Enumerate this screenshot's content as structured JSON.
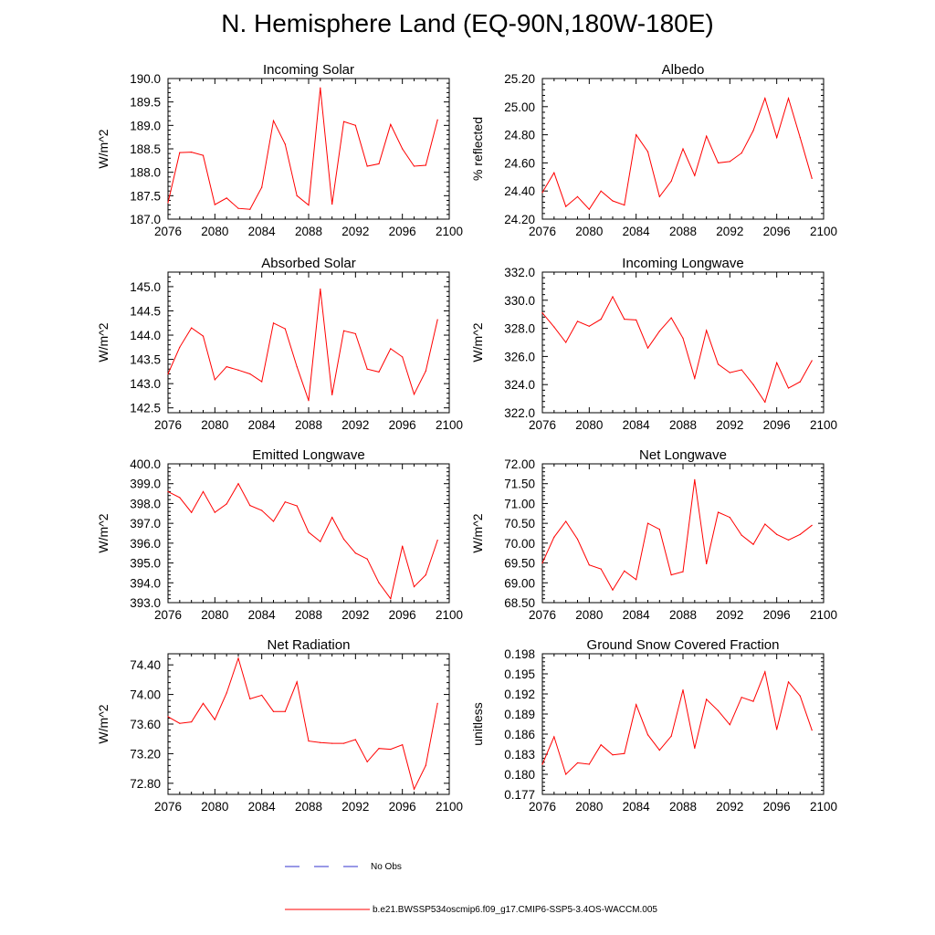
{
  "figure": {
    "title": "N. Hemisphere Land (EQ-90N,180W-180E)",
    "legend": [
      {
        "label": "No Obs",
        "color": "#3333cc",
        "dash": true
      },
      {
        "label": "b.e21.BWSSP534oscmip6.f09_g17.CMIP6-SSP5-3.4OS-WACCM.005",
        "color": "#ff0000",
        "dash": false
      }
    ]
  },
  "chart_data": [
    {
      "type": "line",
      "title": "Incoming Solar",
      "ylabel": "W/m^2",
      "xlim": [
        2076,
        2100
      ],
      "ylim": [
        187.0,
        190.0
      ],
      "xticks": [
        "2076",
        "2080",
        "2084",
        "2088",
        "2092",
        "2096",
        "2100"
      ],
      "yticks": [
        "187.0",
        "187.5",
        "188.0",
        "188.5",
        "189.0",
        "189.5",
        "190.0"
      ],
      "series": [
        {
          "name": "b.e21.BWSSP534oscmip6.f09_g17.CMIP6-SSP5-3.4OS-WACCM.005",
          "color": "#ff0000",
          "x": [
            2076,
            2077,
            2078,
            2079,
            2080,
            2081,
            2082,
            2083,
            2084,
            2085,
            2086,
            2087,
            2088,
            2089,
            2090,
            2091,
            2092,
            2093,
            2094,
            2095,
            2096,
            2097,
            2098,
            2099
          ],
          "values": [
            187.35,
            188.42,
            188.43,
            188.36,
            187.31,
            187.45,
            187.23,
            187.21,
            187.68,
            189.1,
            188.6,
            187.5,
            187.3,
            189.8,
            187.32,
            189.08,
            189.0,
            188.13,
            188.18,
            189.02,
            188.5,
            188.13,
            188.15,
            189.12
          ]
        }
      ]
    },
    {
      "type": "line",
      "title": "Albedo",
      "ylabel": "% reflected",
      "xlim": [
        2076,
        2100
      ],
      "ylim": [
        24.2,
        25.2
      ],
      "xticks": [
        "2076",
        "2080",
        "2084",
        "2088",
        "2092",
        "2096",
        "2100"
      ],
      "yticks": [
        "24.20",
        "24.40",
        "24.60",
        "24.80",
        "25.00",
        "25.20"
      ],
      "series": [
        {
          "name": "b.e21.BWSSP534oscmip6.f09_g17.CMIP6-SSP5-3.4OS-WACCM.005",
          "color": "#ff0000",
          "x": [
            2076,
            2077,
            2078,
            2079,
            2080,
            2081,
            2082,
            2083,
            2084,
            2085,
            2086,
            2087,
            2088,
            2089,
            2090,
            2091,
            2092,
            2093,
            2094,
            2095,
            2096,
            2097,
            2098,
            2099
          ],
          "values": [
            24.39,
            24.53,
            24.29,
            24.36,
            24.27,
            24.4,
            24.33,
            24.3,
            24.8,
            24.68,
            24.36,
            24.47,
            24.7,
            24.51,
            24.79,
            24.6,
            24.61,
            24.67,
            24.83,
            25.06,
            24.78,
            25.06,
            24.78,
            24.49
          ]
        }
      ]
    },
    {
      "type": "line",
      "title": "Absorbed Solar",
      "ylabel": "W/m^2",
      "xlim": [
        2076,
        2100
      ],
      "ylim": [
        142.4,
        145.3
      ],
      "xticks": [
        "2076",
        "2080",
        "2084",
        "2088",
        "2092",
        "2096",
        "2100"
      ],
      "yticks": [
        "142.5",
        "143.0",
        "143.5",
        "144.0",
        "144.5",
        "145.0"
      ],
      "series": [
        {
          "name": "b.e21.BWSSP534oscmip6.f09_g17.CMIP6-SSP5-3.4OS-WACCM.005",
          "color": "#ff0000",
          "x": [
            2076,
            2077,
            2078,
            2079,
            2080,
            2081,
            2082,
            2083,
            2084,
            2085,
            2086,
            2087,
            2088,
            2089,
            2090,
            2091,
            2092,
            2093,
            2094,
            2095,
            2096,
            2097,
            2098,
            2099
          ],
          "values": [
            143.2,
            143.75,
            144.15,
            143.98,
            143.08,
            143.35,
            143.28,
            143.2,
            143.04,
            144.25,
            144.13,
            143.35,
            142.65,
            144.95,
            142.77,
            144.09,
            144.03,
            143.3,
            143.24,
            143.72,
            143.55,
            142.78,
            143.26,
            144.32
          ]
        }
      ]
    },
    {
      "type": "line",
      "title": "Incoming Longwave",
      "ylabel": "W/m^2",
      "xlim": [
        2076,
        2100
      ],
      "ylim": [
        322.0,
        332.0
      ],
      "xticks": [
        "2076",
        "2080",
        "2084",
        "2088",
        "2092",
        "2096",
        "2100"
      ],
      "yticks": [
        "322.0",
        "324.0",
        "326.0",
        "328.0",
        "330.0",
        "332.0"
      ],
      "series": [
        {
          "name": "b.e21.BWSSP534oscmip6.f09_g17.CMIP6-SSP5-3.4OS-WACCM.005",
          "color": "#ff0000",
          "x": [
            2076,
            2077,
            2078,
            2079,
            2080,
            2081,
            2082,
            2083,
            2084,
            2085,
            2086,
            2087,
            2088,
            2089,
            2090,
            2091,
            2092,
            2093,
            2094,
            2095,
            2096,
            2097,
            2098,
            2099
          ],
          "values": [
            329.1,
            328.1,
            327.0,
            328.5,
            328.15,
            328.65,
            330.25,
            328.65,
            328.6,
            326.6,
            327.8,
            328.75,
            327.3,
            324.45,
            327.85,
            325.45,
            324.85,
            325.05,
            324.0,
            322.75,
            325.55,
            323.75,
            324.2,
            325.7
          ]
        }
      ]
    },
    {
      "type": "line",
      "title": "Emitted Longwave",
      "ylabel": "W/m^2",
      "xlim": [
        2076,
        2100
      ],
      "ylim": [
        393.0,
        400.0
      ],
      "xticks": [
        "2076",
        "2080",
        "2084",
        "2088",
        "2092",
        "2096",
        "2100"
      ],
      "yticks": [
        "393.0",
        "394.0",
        "395.0",
        "396.0",
        "397.0",
        "398.0",
        "399.0",
        "400.0"
      ],
      "series": [
        {
          "name": "b.e21.BWSSP534oscmip6.f09_g17.CMIP6-SSP5-3.4OS-WACCM.005",
          "color": "#ff0000",
          "x": [
            2076,
            2077,
            2078,
            2079,
            2080,
            2081,
            2082,
            2083,
            2084,
            2085,
            2086,
            2087,
            2088,
            2089,
            2090,
            2091,
            2092,
            2093,
            2094,
            2095,
            2096,
            2097,
            2098,
            2099
          ],
          "values": [
            398.6,
            398.3,
            397.55,
            398.6,
            397.55,
            397.98,
            399.0,
            397.9,
            397.65,
            397.1,
            398.08,
            397.88,
            396.55,
            396.08,
            397.3,
            396.2,
            395.5,
            395.2,
            394.0,
            393.2,
            395.85,
            393.8,
            394.4,
            396.15
          ]
        }
      ]
    },
    {
      "type": "line",
      "title": "Net Longwave",
      "ylabel": "W/m^2",
      "xlim": [
        2076,
        2100
      ],
      "ylim": [
        68.5,
        72.0
      ],
      "xticks": [
        "2076",
        "2080",
        "2084",
        "2088",
        "2092",
        "2096",
        "2100"
      ],
      "yticks": [
        "68.50",
        "69.00",
        "69.50",
        "70.00",
        "70.50",
        "71.00",
        "71.50",
        "72.00"
      ],
      "series": [
        {
          "name": "b.e21.BWSSP534oscmip6.f09_g17.CMIP6-SSP5-3.4OS-WACCM.005",
          "color": "#ff0000",
          "x": [
            2076,
            2077,
            2078,
            2079,
            2080,
            2081,
            2082,
            2083,
            2084,
            2085,
            2086,
            2087,
            2088,
            2089,
            2090,
            2091,
            2092,
            2093,
            2094,
            2095,
            2096,
            2097,
            2098,
            2099
          ],
          "values": [
            69.5,
            70.15,
            70.55,
            70.1,
            69.45,
            69.35,
            68.82,
            69.3,
            69.08,
            70.5,
            70.35,
            69.2,
            69.28,
            71.6,
            69.48,
            70.78,
            70.65,
            70.2,
            69.97,
            70.48,
            70.22,
            70.08,
            70.22,
            70.45
          ]
        }
      ]
    },
    {
      "type": "line",
      "title": "Net Radiation",
      "ylabel": "W/m^2",
      "xlim": [
        2076,
        2100
      ],
      "ylim": [
        72.65,
        74.55
      ],
      "xticks": [
        "2076",
        "2080",
        "2084",
        "2088",
        "2092",
        "2096",
        "2100"
      ],
      "yticks": [
        "72.80",
        "73.20",
        "73.60",
        "74.00",
        "74.40"
      ],
      "series": [
        {
          "name": "b.e21.BWSSP534oscmip6.f09_g17.CMIP6-SSP5-3.4OS-WACCM.005",
          "color": "#ff0000",
          "x": [
            2076,
            2077,
            2078,
            2079,
            2080,
            2081,
            2082,
            2083,
            2084,
            2085,
            2086,
            2087,
            2088,
            2089,
            2090,
            2091,
            2092,
            2093,
            2094,
            2095,
            2096,
            2097,
            2098,
            2099
          ],
          "values": [
            73.7,
            73.61,
            73.63,
            73.88,
            73.66,
            74.02,
            74.49,
            73.94,
            73.99,
            73.77,
            73.77,
            74.17,
            73.37,
            73.35,
            73.34,
            73.34,
            73.39,
            73.09,
            73.27,
            73.26,
            73.32,
            72.72,
            73.04,
            73.88
          ]
        }
      ]
    },
    {
      "type": "line",
      "title": "Ground Snow Covered Fraction",
      "ylabel": "unitless",
      "xlim": [
        2076,
        2100
      ],
      "ylim": [
        0.177,
        0.198
      ],
      "xticks": [
        "2076",
        "2080",
        "2084",
        "2088",
        "2092",
        "2096",
        "2100"
      ],
      "yticks": [
        "0.177",
        "0.180",
        "0.183",
        "0.186",
        "0.189",
        "0.192",
        "0.195",
        "0.198"
      ],
      "series": [
        {
          "name": "b.e21.BWSSP534oscmip6.f09_g17.CMIP6-SSP5-3.4OS-WACCM.005",
          "color": "#ff0000",
          "x": [
            2076,
            2077,
            2078,
            2079,
            2080,
            2081,
            2082,
            2083,
            2084,
            2085,
            2086,
            2087,
            2088,
            2089,
            2090,
            2091,
            2092,
            2093,
            2094,
            2095,
            2096,
            2097,
            2098,
            2099
          ],
          "values": [
            0.1815,
            0.1856,
            0.18,
            0.1817,
            0.1815,
            0.1844,
            0.1829,
            0.1831,
            0.1904,
            0.1859,
            0.1836,
            0.1857,
            0.1926,
            0.1839,
            0.1912,
            0.1895,
            0.1874,
            0.1915,
            0.1909,
            0.1953,
            0.1867,
            0.1938,
            0.1917,
            0.1866
          ]
        }
      ]
    }
  ]
}
